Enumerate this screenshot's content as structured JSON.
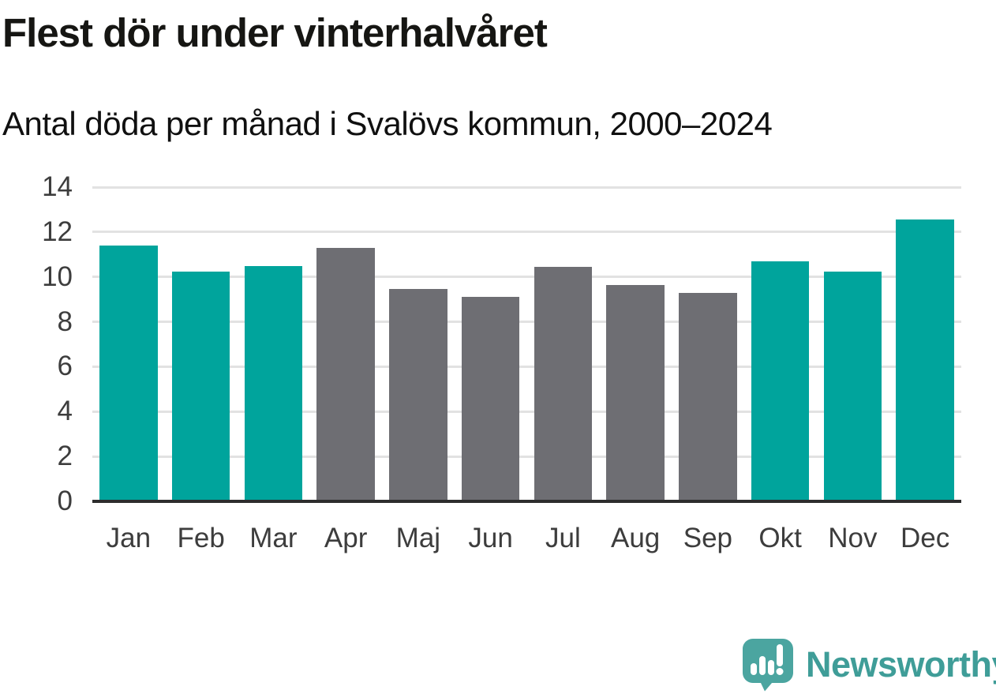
{
  "header": {
    "title": "Flest dör under vinterhalvåret",
    "subtitle": "Antal döda per månad i Svalövs kommun, 2000–2024"
  },
  "chart_data": {
    "type": "bar",
    "title": "Flest dör under vinterhalvåret",
    "subtitle": "Antal döda per månad i Svalövs kommun, 2000–2024",
    "categories": [
      "Jan",
      "Feb",
      "Mar",
      "Apr",
      "Maj",
      "Jun",
      "Jul",
      "Aug",
      "Sep",
      "Okt",
      "Nov",
      "Dec"
    ],
    "values": [
      11.4,
      10.25,
      10.5,
      11.3,
      9.45,
      9.1,
      10.45,
      9.65,
      9.3,
      10.7,
      10.25,
      12.55
    ],
    "bar_colors": [
      "#00a49c",
      "#00a49c",
      "#00a49c",
      "#6e6e73",
      "#6e6e73",
      "#6e6e73",
      "#6e6e73",
      "#6e6e73",
      "#6e6e73",
      "#00a49c",
      "#00a49c",
      "#00a49c"
    ],
    "highlight_color": "#00a49c",
    "muted_color": "#6e6e73",
    "xlabel": "",
    "ylabel": "",
    "ylim": [
      0,
      14
    ],
    "yticks": [
      0,
      2,
      4,
      6,
      8,
      10,
      12,
      14
    ],
    "grid": true,
    "legend": "none"
  },
  "colors": {
    "grid_line": "#e2e2e2",
    "axis_line": "#2d2d2d",
    "tick_label": "#3d3d3d"
  },
  "footer": {
    "brand_label": "Newsworthy",
    "brand_text_color": "#3f9d98",
    "logo_color": "#4ba5a0",
    "logo_icon": "newsworthy-speech-bubble-chart-icon"
  }
}
